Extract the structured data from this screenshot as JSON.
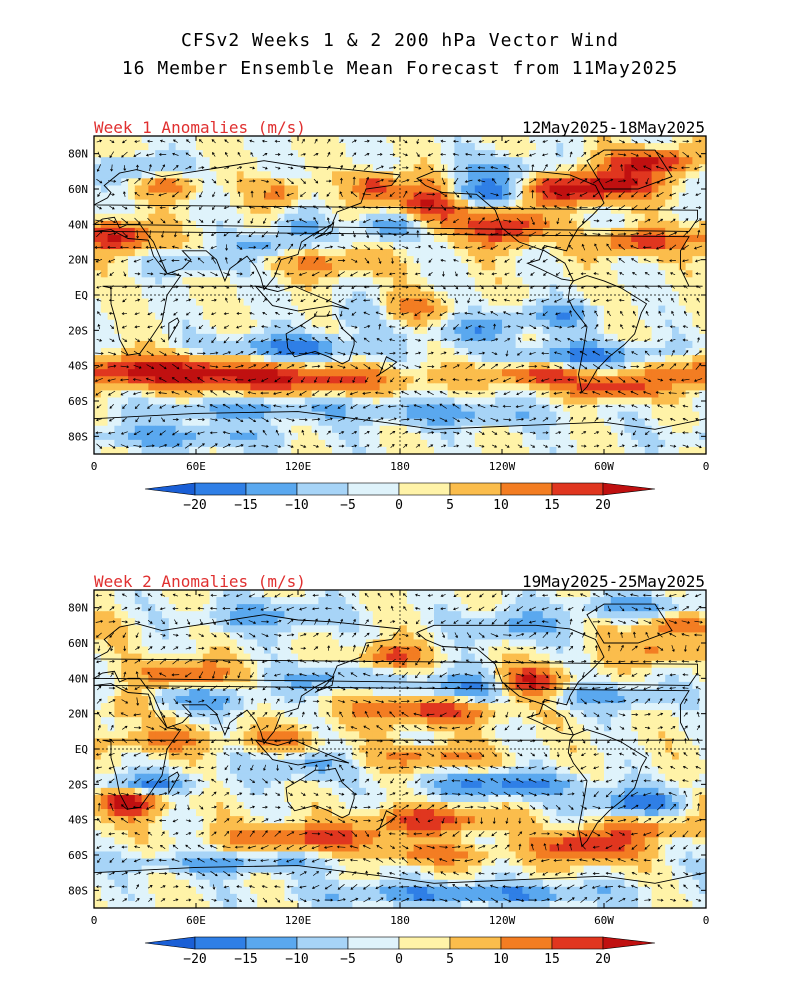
{
  "title_line1": "CFSv2 Weeks 1 & 2 200 hPa Vector Wind",
  "title_line2": "16 Member Ensemble Mean Forecast from 11May2025",
  "panels": [
    {
      "label": "Week 1 Anomalies (m/s)",
      "dates": "12May2025-18May2025"
    },
    {
      "label": "Week 2 Anomalies (m/s)",
      "dates": "19May2025-25May2025"
    }
  ],
  "lat_ticks": [
    "80N",
    "60N",
    "40N",
    "20N",
    "EQ",
    "20S",
    "40S",
    "60S",
    "80S"
  ],
  "lon_ticks": [
    "0",
    "60E",
    "120E",
    "180",
    "120W",
    "60W",
    "0"
  ],
  "colorbar": {
    "labels": [
      "-20",
      "-15",
      "-10",
      "-5",
      "0",
      "5",
      "10",
      "15",
      "20"
    ],
    "colors": [
      "#1a5fd6",
      "#2f7fe6",
      "#5aa8ef",
      "#a7d4f7",
      "#dff3fb",
      "#fff3a8",
      "#fbbd4c",
      "#f37d22",
      "#e0361f",
      "#c01010"
    ]
  }
}
